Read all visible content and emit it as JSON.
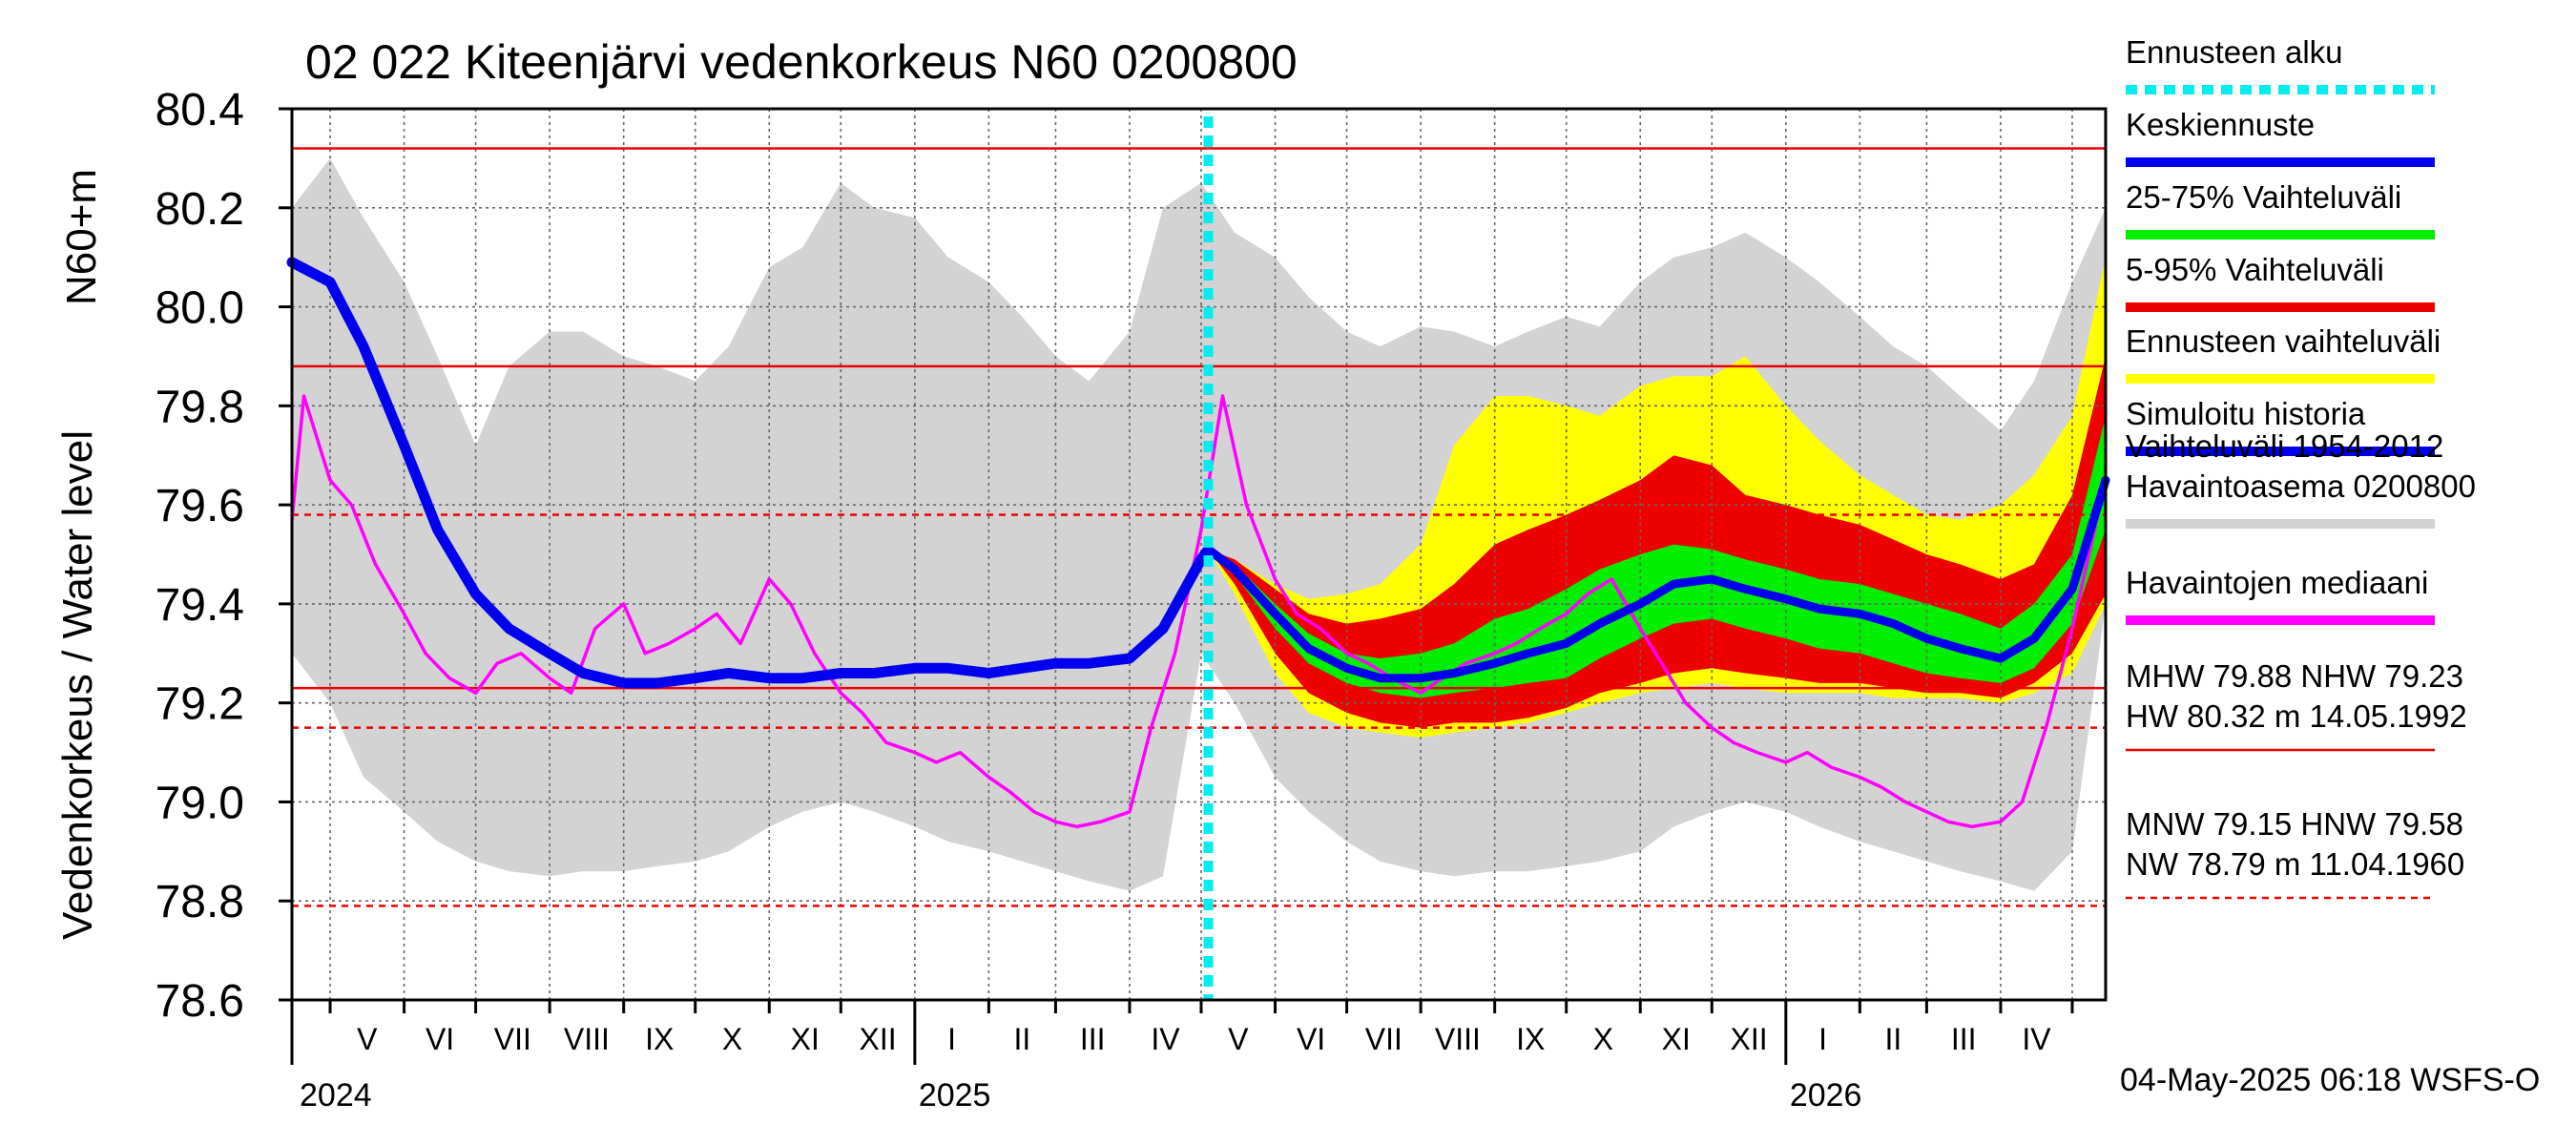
{
  "chart_data": {
    "type": "area",
    "title": "02 022 Kiteenjärvi vedenkorkeus N60 0200800",
    "ylabel_top": "N60+m",
    "ylabel": "Vedenkorkeus / Water level",
    "ylim": [
      78.6,
      80.4
    ],
    "y_ticks": [
      "80.4",
      "80.2",
      "80.0",
      "79.8",
      "79.6",
      "79.4",
      "79.2",
      "79.0",
      "78.8",
      "78.6"
    ],
    "x_start": "2024-04-15",
    "x_end": "2026-05-15",
    "month_labels": [
      "V",
      "VI",
      "VII",
      "VIII",
      "IX",
      "X",
      "XI",
      "XII",
      "I",
      "II",
      "III",
      "IV",
      "V",
      "VI",
      "VII",
      "VIII",
      "IX",
      "X",
      "XI",
      "XII",
      "I",
      "II",
      "III",
      "IV"
    ],
    "year_labels": [
      "2024",
      "2025",
      "2026"
    ],
    "forecast_start": "2025-05-04",
    "footer": "04-May-2025 06:18 WSFS-O",
    "reference_lines": [
      {
        "name": "HW",
        "value": 80.32,
        "style": "solid"
      },
      {
        "name": "MHW",
        "value": 79.88,
        "style": "solid"
      },
      {
        "name": "HNW",
        "value": 79.58,
        "style": "dashed"
      },
      {
        "name": "NHW",
        "value": 79.23,
        "style": "solid"
      },
      {
        "name": "MNW",
        "value": 79.15,
        "style": "dashed"
      },
      {
        "name": "NW",
        "value": 78.79,
        "style": "dashed"
      }
    ],
    "legend": [
      {
        "label": "Ennusteen alku",
        "color": "#00eeee",
        "style": "dotted"
      },
      {
        "label": "Keskiennuste",
        "color": "#0000ee",
        "style": "solid"
      },
      {
        "label": "25-75% Vaihteluväli",
        "color": "#00ee00",
        "style": "solid"
      },
      {
        "label": "5-95% Vaihteluväli",
        "color": "#ee0000",
        "style": "solid"
      },
      {
        "label": "Ennusteen vaihteluväli",
        "color": "#ffff00",
        "style": "solid"
      },
      {
        "label": "Simuloitu historia",
        "color": "#0000ee",
        "style": "solid"
      },
      {
        "label": "Vaihteluväli 1954-2012\n Havaintoasema 0200800",
        "color": "#d3d3d3",
        "style": "solid"
      },
      {
        "label": "Havaintojen mediaani",
        "color": "#ff00ff",
        "style": "solid"
      }
    ],
    "stats": [
      {
        "text": "MHW  79.88 NHW  79.23\nHW  80.32 m 14.05.1992",
        "line": "solid"
      },
      {
        "text": "MNW  79.15 HNW  79.58\nNW  78.79 m 11.04.1960",
        "line": "dashed"
      }
    ],
    "colors": {
      "historical_range": "#d3d3d3",
      "forecast_range": "#ffff00",
      "p5_95": "#ee0000",
      "p25_75": "#00ee00",
      "mean": "#0000ee",
      "observed": "#ff00ff",
      "forecast_start": "#00eeee",
      "reference": "#ee0000"
    },
    "historical_band": {
      "x": [
        "2024-04-15",
        "2024-05-01",
        "2024-05-15",
        "2024-06-01",
        "2024-06-15",
        "2024-07-01",
        "2024-07-15",
        "2024-08-01",
        "2024-08-15",
        "2024-09-01",
        "2024-09-15",
        "2024-10-01",
        "2024-10-15",
        "2024-11-01",
        "2024-11-15",
        "2024-12-01",
        "2024-12-15",
        "2025-01-01",
        "2025-01-15",
        "2025-02-01",
        "2025-02-15",
        "2025-03-01",
        "2025-03-15",
        "2025-04-01",
        "2025-04-15",
        "2025-05-01",
        "2025-05-15",
        "2025-06-01",
        "2025-06-15",
        "2025-07-01",
        "2025-07-15",
        "2025-08-01",
        "2025-08-15",
        "2025-09-01",
        "2025-09-15",
        "2025-10-01",
        "2025-10-15",
        "2025-11-01",
        "2025-11-15",
        "2025-12-01",
        "2025-12-15",
        "2026-01-01",
        "2026-01-15",
        "2026-02-01",
        "2026-02-15",
        "2026-03-01",
        "2026-03-15",
        "2026-04-01",
        "2026-04-15",
        "2026-05-01",
        "2026-05-15"
      ],
      "upper": [
        80.2,
        80.3,
        80.18,
        80.05,
        79.9,
        79.72,
        79.88,
        79.95,
        79.95,
        79.9,
        79.88,
        79.85,
        79.92,
        80.08,
        80.12,
        80.25,
        80.2,
        80.18,
        80.1,
        80.05,
        79.98,
        79.9,
        79.85,
        79.95,
        80.2,
        80.25,
        80.15,
        80.1,
        80.02,
        79.95,
        79.92,
        79.96,
        79.95,
        79.92,
        79.95,
        79.98,
        79.96,
        80.05,
        80.1,
        80.12,
        80.15,
        80.1,
        80.05,
        79.98,
        79.92,
        79.88,
        79.82,
        79.75,
        79.85,
        80.05,
        80.2
      ],
      "lower": [
        79.3,
        79.2,
        79.05,
        78.98,
        78.92,
        78.88,
        78.86,
        78.85,
        78.86,
        78.86,
        78.87,
        78.88,
        78.9,
        78.95,
        78.98,
        79.0,
        78.98,
        78.95,
        78.92,
        78.9,
        78.88,
        78.86,
        78.84,
        78.82,
        78.85,
        79.3,
        79.2,
        79.05,
        78.98,
        78.92,
        78.88,
        78.86,
        78.85,
        78.86,
        78.86,
        78.87,
        78.88,
        78.9,
        78.95,
        78.98,
        79.0,
        78.98,
        78.95,
        78.92,
        78.9,
        78.88,
        78.86,
        78.84,
        78.82,
        78.9,
        79.4
      ]
    },
    "forecast": {
      "x": [
        "2025-05-04",
        "2025-05-15",
        "2025-06-01",
        "2025-06-15",
        "2025-07-01",
        "2025-07-15",
        "2025-08-01",
        "2025-08-15",
        "2025-09-01",
        "2025-09-15",
        "2025-10-01",
        "2025-10-15",
        "2025-11-01",
        "2025-11-15",
        "2025-12-01",
        "2025-12-15",
        "2026-01-01",
        "2026-01-15",
        "2026-02-01",
        "2026-02-15",
        "2026-03-01",
        "2026-03-15",
        "2026-04-01",
        "2026-04-15",
        "2026-05-01",
        "2026-05-15"
      ],
      "max": [
        79.51,
        79.49,
        79.44,
        79.41,
        79.42,
        79.44,
        79.52,
        79.72,
        79.82,
        79.82,
        79.8,
        79.78,
        79.84,
        79.86,
        79.86,
        79.9,
        79.8,
        79.73,
        79.66,
        79.62,
        79.58,
        79.57,
        79.6,
        79.66,
        79.78,
        80.1
      ],
      "p95": [
        79.51,
        79.49,
        79.43,
        79.38,
        79.36,
        79.37,
        79.39,
        79.44,
        79.52,
        79.55,
        79.58,
        79.61,
        79.65,
        79.7,
        79.68,
        79.62,
        79.6,
        79.58,
        79.56,
        79.53,
        79.5,
        79.48,
        79.45,
        79.48,
        79.62,
        79.9
      ],
      "p75": [
        79.51,
        79.48,
        79.4,
        79.34,
        79.3,
        79.29,
        79.3,
        79.32,
        79.37,
        79.39,
        79.43,
        79.47,
        79.5,
        79.52,
        79.51,
        79.49,
        79.47,
        79.45,
        79.44,
        79.42,
        79.4,
        79.38,
        79.35,
        79.4,
        79.5,
        79.78
      ],
      "mean": [
        79.51,
        79.47,
        79.38,
        79.31,
        79.27,
        79.25,
        79.25,
        79.26,
        79.28,
        79.3,
        79.32,
        79.36,
        79.4,
        79.44,
        79.45,
        79.43,
        79.41,
        79.39,
        79.38,
        79.36,
        79.33,
        79.31,
        79.29,
        79.33,
        79.43,
        79.65
      ],
      "p25": [
        79.51,
        79.46,
        79.35,
        79.28,
        79.24,
        79.22,
        79.21,
        79.22,
        79.23,
        79.24,
        79.25,
        79.29,
        79.33,
        79.36,
        79.37,
        79.35,
        79.33,
        79.31,
        79.3,
        79.28,
        79.26,
        79.25,
        79.24,
        79.27,
        79.36,
        79.55
      ],
      "p5": [
        79.51,
        79.44,
        79.3,
        79.22,
        79.18,
        79.16,
        79.15,
        79.16,
        79.16,
        79.17,
        79.19,
        79.22,
        79.24,
        79.26,
        79.27,
        79.26,
        79.25,
        79.24,
        79.24,
        79.23,
        79.22,
        79.22,
        79.21,
        79.24,
        79.3,
        79.42
      ],
      "min": [
        79.51,
        79.42,
        79.26,
        79.18,
        79.15,
        79.14,
        79.13,
        79.14,
        79.15,
        79.16,
        79.18,
        79.2,
        79.22,
        79.23,
        79.24,
        79.23,
        79.22,
        79.22,
        79.22,
        79.21,
        79.21,
        79.21,
        79.2,
        79.22,
        79.26,
        79.4
      ]
    },
    "simulated_history": {
      "x": [
        "2024-04-15",
        "2024-05-01",
        "2024-05-15",
        "2024-06-01",
        "2024-06-15",
        "2024-07-01",
        "2024-07-15",
        "2024-08-01",
        "2024-08-15",
        "2024-09-01",
        "2024-09-15",
        "2024-10-01",
        "2024-10-15",
        "2024-11-01",
        "2024-11-15",
        "2024-12-01",
        "2024-12-15",
        "2025-01-01",
        "2025-01-15",
        "2025-02-01",
        "2025-02-15",
        "2025-03-01",
        "2025-03-15",
        "2025-04-01",
        "2025-04-15",
        "2025-05-01",
        "2025-05-04"
      ],
      "y": [
        80.09,
        80.05,
        79.92,
        79.72,
        79.55,
        79.42,
        79.35,
        79.3,
        79.26,
        79.24,
        79.24,
        79.25,
        79.26,
        79.25,
        79.25,
        79.26,
        79.26,
        79.27,
        79.27,
        79.26,
        79.27,
        79.28,
        79.28,
        79.29,
        79.35,
        79.49,
        79.51
      ]
    },
    "median_observed": {
      "x": [
        "2024-04-15",
        "2024-04-20",
        "2024-05-01",
        "2024-05-10",
        "2024-05-20",
        "2024-06-01",
        "2024-06-10",
        "2024-06-20",
        "2024-07-01",
        "2024-07-10",
        "2024-07-20",
        "2024-08-01",
        "2024-08-10",
        "2024-08-20",
        "2024-09-01",
        "2024-09-10",
        "2024-09-20",
        "2024-10-01",
        "2024-10-10",
        "2024-10-20",
        "2024-11-01",
        "2024-11-10",
        "2024-11-20",
        "2024-12-01",
        "2024-12-10",
        "2024-12-20",
        "2025-01-01",
        "2025-01-10",
        "2025-01-20",
        "2025-02-01",
        "2025-02-10",
        "2025-02-20",
        "2025-03-01",
        "2025-03-10",
        "2025-03-20",
        "2025-04-01",
        "2025-04-10",
        "2025-04-20",
        "2025-05-01",
        "2025-05-10",
        "2025-05-20",
        "2025-06-01",
        "2025-06-10",
        "2025-06-20",
        "2025-07-01",
        "2025-07-10",
        "2025-07-20",
        "2025-08-01",
        "2025-08-10",
        "2025-08-20",
        "2025-09-01",
        "2025-09-10",
        "2025-09-20",
        "2025-10-01",
        "2025-10-10",
        "2025-10-20",
        "2025-11-01",
        "2025-11-10",
        "2025-11-20",
        "2025-12-01",
        "2025-12-10",
        "2025-12-20",
        "2026-01-01",
        "2026-01-10",
        "2026-01-20",
        "2026-02-01",
        "2026-02-10",
        "2026-02-20",
        "2026-03-01",
        "2026-03-10",
        "2026-03-20",
        "2026-04-01",
        "2026-04-10",
        "2026-04-20",
        "2026-05-01",
        "2026-05-15"
      ],
      "y": [
        79.57,
        79.82,
        79.65,
        79.6,
        79.48,
        79.38,
        79.3,
        79.25,
        79.22,
        79.28,
        79.3,
        79.25,
        79.22,
        79.35,
        79.4,
        79.3,
        79.32,
        79.35,
        79.38,
        79.32,
        79.45,
        79.4,
        79.3,
        79.22,
        79.18,
        79.12,
        79.1,
        79.08,
        79.1,
        79.05,
        79.02,
        78.98,
        78.96,
        78.95,
        78.96,
        78.98,
        79.15,
        79.3,
        79.55,
        79.82,
        79.6,
        79.45,
        79.38,
        79.35,
        79.3,
        79.28,
        79.25,
        79.22,
        79.25,
        79.28,
        79.3,
        79.32,
        79.35,
        79.38,
        79.42,
        79.45,
        79.35,
        79.28,
        79.2,
        79.15,
        79.12,
        79.1,
        79.08,
        79.1,
        79.07,
        79.05,
        79.03,
        79.0,
        78.98,
        78.96,
        78.95,
        78.96,
        79.0,
        79.15,
        79.35,
        79.65
      ]
    }
  }
}
